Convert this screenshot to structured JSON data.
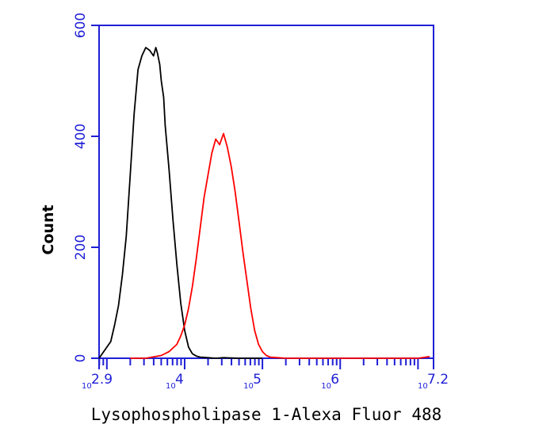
{
  "chart_data": {
    "type": "line",
    "title": "",
    "xlabel": "Lysophospholipase 1-Alexa Fluor 488",
    "ylabel": "Count",
    "x_scale": "log10",
    "xlim": [
      2.9,
      7.2
    ],
    "ylim": [
      0,
      600
    ],
    "x_ticks": [
      {
        "base": "10",
        "exp": "2.9",
        "value": 2.9
      },
      {
        "base": "10",
        "exp": "4",
        "value": 4
      },
      {
        "base": "10",
        "exp": "5",
        "value": 5
      },
      {
        "base": "10",
        "exp": "6",
        "value": 6
      },
      {
        "base": "10",
        "exp": "7.2",
        "value": 7.2
      }
    ],
    "y_ticks": [
      {
        "label": "0",
        "value": 0
      },
      {
        "label": "200",
        "value": 200
      },
      {
        "label": "400",
        "value": 400
      },
      {
        "label": "600",
        "value": 600
      }
    ],
    "grid": false,
    "legend": "none",
    "axis_color": "#1f1fd6",
    "series": [
      {
        "color": "#000000",
        "x": [
          2.9,
          2.95,
          3.0,
          3.05,
          3.1,
          3.15,
          3.2,
          3.25,
          3.3,
          3.35,
          3.4,
          3.45,
          3.5,
          3.55,
          3.6,
          3.63,
          3.65,
          3.68,
          3.7,
          3.73,
          3.75,
          3.8,
          3.85,
          3.9,
          3.95,
          4.0,
          4.05,
          4.1,
          4.15,
          4.2,
          4.3,
          4.4,
          4.5,
          4.7,
          5.0
        ],
        "y": [
          0,
          10,
          20,
          30,
          60,
          95,
          150,
          220,
          330,
          440,
          520,
          545,
          560,
          555,
          545,
          560,
          550,
          530,
          500,
          470,
          420,
          340,
          250,
          170,
          100,
          50,
          20,
          8,
          4,
          2,
          1,
          0,
          1,
          0,
          0
        ]
      },
      {
        "color": "#ff0000",
        "x": [
          3.3,
          3.5,
          3.7,
          3.8,
          3.9,
          3.95,
          4.0,
          4.05,
          4.1,
          4.15,
          4.2,
          4.25,
          4.3,
          4.35,
          4.4,
          4.45,
          4.5,
          4.55,
          4.6,
          4.65,
          4.7,
          4.75,
          4.8,
          4.85,
          4.9,
          4.95,
          5.0,
          5.05,
          5.1,
          5.2,
          5.3,
          5.5,
          6.0,
          7.0,
          7.15
        ],
        "y": [
          0,
          0,
          5,
          12,
          25,
          40,
          60,
          90,
          130,
          180,
          235,
          290,
          330,
          370,
          395,
          385,
          405,
          380,
          345,
          300,
          245,
          190,
          140,
          90,
          50,
          25,
          12,
          5,
          2,
          1,
          0,
          0,
          0,
          0,
          3
        ]
      }
    ]
  }
}
